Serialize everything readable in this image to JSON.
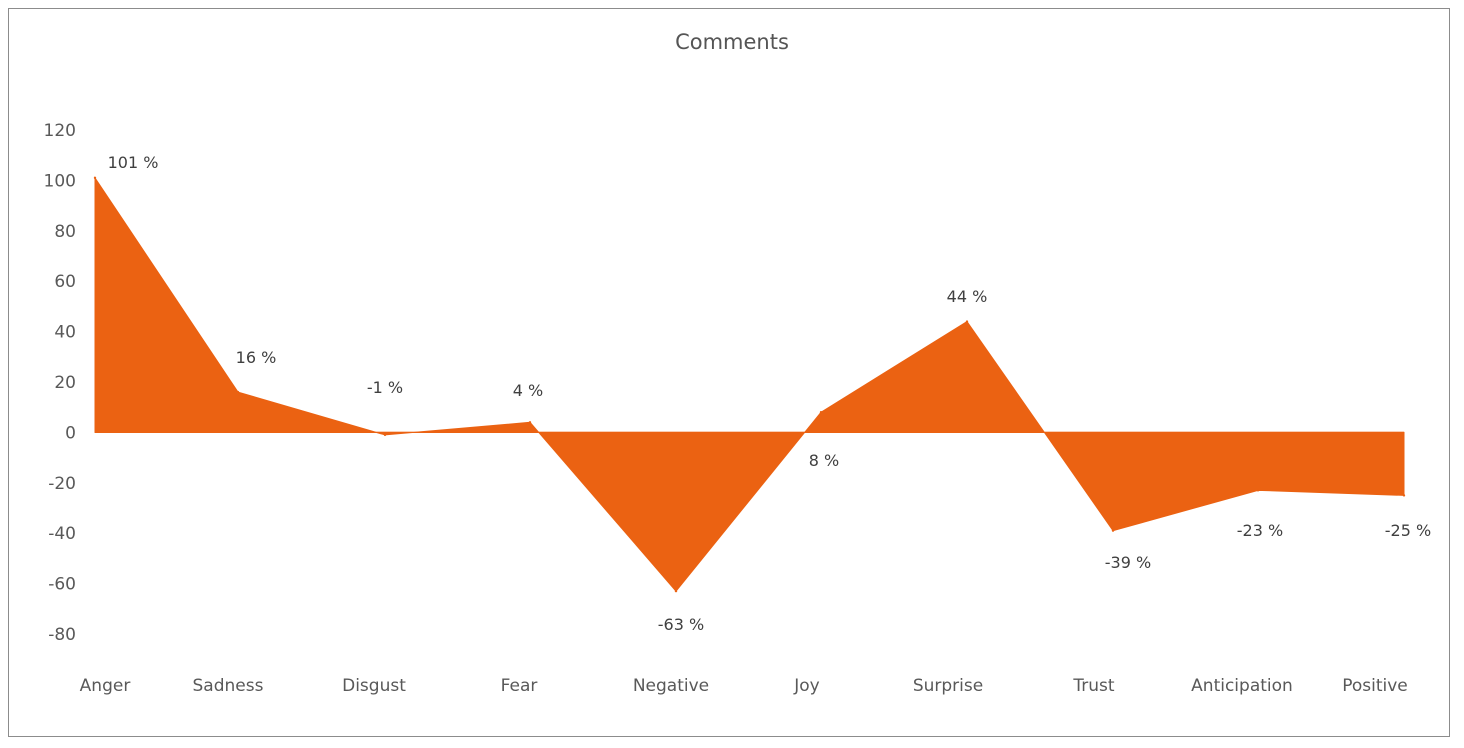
{
  "chart_data": {
    "type": "area",
    "title": "Comments",
    "xlabel": "",
    "ylabel": "",
    "ylim": [
      -80,
      120
    ],
    "yticks": [
      120,
      100,
      80,
      60,
      40,
      20,
      0,
      -20,
      -40,
      -60,
      -80
    ],
    "categories": [
      "Anger",
      "Sadness",
      "Disgust",
      "Fear",
      "Negative",
      "Joy",
      "Surprise",
      "Trust",
      "Anticipation",
      "Positive"
    ],
    "series": [
      {
        "name": "Comments",
        "values": [
          101,
          16,
          -1,
          4,
          -63,
          8,
          44,
          -39,
          -23,
          -25
        ],
        "data_labels": [
          "101 %",
          "16 %",
          "-1 %",
          "4 %",
          "-63 %",
          "8 %",
          "44 %",
          "-39 %",
          "-23 %",
          "-25 %"
        ],
        "color": "#EB6212"
      }
    ],
    "grid": false,
    "legend": "none"
  }
}
